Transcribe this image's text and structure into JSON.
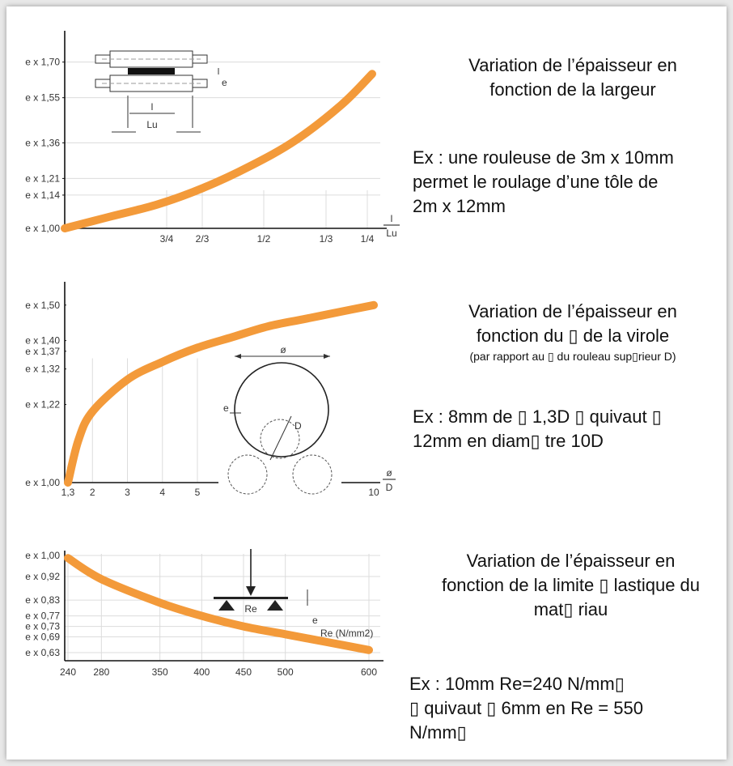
{
  "colors": {
    "curve": "#f39a3a",
    "axis": "#111111",
    "grid": "#dcdcdc",
    "text": "#111111"
  },
  "chart_data": [
    {
      "type": "line",
      "ylabels": [
        "e x 1,70",
        "e x 1,55",
        "e x 1,36",
        "e x 1,21",
        "e x 1,14",
        "e x 1,00"
      ],
      "yvalues": [
        1.7,
        1.55,
        1.36,
        1.21,
        1.14,
        1.0
      ],
      "xticks": [
        "3/4",
        "2/3",
        "1/2",
        "1/3",
        "1/4"
      ],
      "xlabel_num": "l",
      "xlabel_den": "Lu",
      "ylim": [
        1.0,
        1.75
      ],
      "series": [
        {
          "x": [
            0,
            0.15,
            0.3,
            0.45,
            0.6,
            0.75,
            0.9,
            1.0
          ],
          "y": [
            1.0,
            1.05,
            1.1,
            1.17,
            1.26,
            1.37,
            1.52,
            1.65
          ]
        }
      ],
      "inset": {
        "label_l": "l",
        "label_lu": "Lu",
        "label_e": "e"
      }
    },
    {
      "type": "line",
      "ylabels": [
        "e x 1,50",
        "e x 1,40",
        "e x 1,37",
        "e x 1,32",
        "e x 1,22",
        "e x 1,00"
      ],
      "yvalues": [
        1.5,
        1.4,
        1.37,
        1.32,
        1.22,
        1.0
      ],
      "xticks": [
        "1,3",
        "2",
        "3",
        "4",
        "5",
        "10"
      ],
      "xlabel_num": "ø",
      "xlabel_den": "D",
      "ylim": [
        1.0,
        1.52
      ],
      "series": [
        {
          "x": [
            1.3,
            1.6,
            2,
            3,
            4,
            5,
            6,
            7,
            8,
            9,
            10
          ],
          "y": [
            1.0,
            1.12,
            1.2,
            1.29,
            1.34,
            1.38,
            1.41,
            1.44,
            1.46,
            1.48,
            1.5
          ]
        }
      ],
      "inset": {
        "label_phi": "ø",
        "label_e": "e",
        "label_d": "D"
      }
    },
    {
      "type": "line",
      "ylabels": [
        "e x 1,00",
        "e x 0,92",
        "e x 0,83",
        "e x 0,77",
        "e x 0,73",
        "e x 0,69",
        "e x 0,63"
      ],
      "yvalues": [
        1.0,
        0.92,
        0.83,
        0.77,
        0.73,
        0.69,
        0.63
      ],
      "xticks": [
        "240",
        "280",
        "350",
        "400",
        "450",
        "500",
        "600"
      ],
      "xvalues": [
        240,
        280,
        350,
        400,
        450,
        500,
        600
      ],
      "xlim": [
        240,
        600
      ],
      "ylim": [
        0.63,
        1.0
      ],
      "series_label": "Re (N/mm2)",
      "series": [
        {
          "x": [
            240,
            280,
            350,
            400,
            450,
            500,
            550,
            600
          ],
          "y": [
            0.99,
            0.91,
            0.82,
            0.77,
            0.73,
            0.7,
            0.67,
            0.64
          ]
        }
      ],
      "inset": {
        "label_re": "Re",
        "label_e": "e"
      }
    }
  ],
  "descriptions": [
    {
      "title_line1": "Variation de l’épaisseur en",
      "title_line2": "fonction de la largeur",
      "ex_line1": "Ex : une rouleuse de 3m x 10mm",
      "ex_line2": "permet le roulage d’une tôle  de",
      "ex_line3": "2m x 12mm"
    },
    {
      "title_line1": "Variation de l’épaisseur en",
      "title_line2": "fonction du  ▯  de la virole",
      "note": "(par rapport au  ▯  du rouleau sup▯rieur D)",
      "ex_line1": "Ex : 8mm de  ▯   1,3D ▯ quivaut ▯",
      "ex_line2": "12mm en diam▯ tre 10D"
    },
    {
      "title_line1": "Variation de l’épaisseur en",
      "title_line2": "fonction de la limite ▯ lastique du",
      "title_line3": "mat▯ riau",
      "ex_line1": "Ex : 10mm Re=240 N/mm▯",
      "ex_line2": "▯ quivaut ▯  6mm en Re = 550",
      "ex_line3": "N/mm▯"
    }
  ]
}
